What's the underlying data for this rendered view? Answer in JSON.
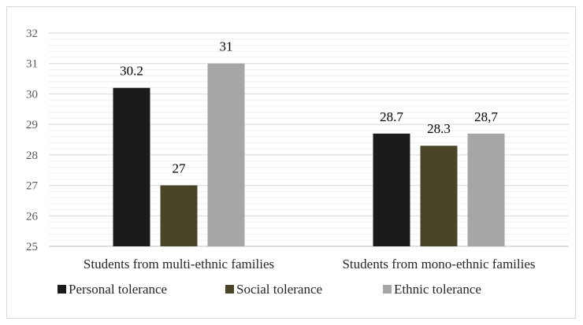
{
  "chart_data": {
    "type": "bar",
    "title": "",
    "xlabel": "",
    "ylabel": "",
    "ylim": [
      25,
      32
    ],
    "yticks": [
      25,
      26,
      27,
      28,
      29,
      30,
      31,
      32
    ],
    "minor_gridlines": true,
    "legend_position": "bottom-left",
    "categories": [
      "Students from multi-ethnic families",
      "Students from mono-ethnic families"
    ],
    "series": [
      {
        "name": "Personal tolerance",
        "color": "#1a1a1a",
        "values": [
          30.2,
          28.7
        ],
        "labels": [
          "30.2",
          "28.7"
        ]
      },
      {
        "name": "Social tolerance",
        "color": "#4a4429",
        "values": [
          27,
          28.3
        ],
        "labels": [
          "27",
          "28.3"
        ]
      },
      {
        "name": "Ethnic tolerance",
        "color": "#a6a6a6",
        "values": [
          31,
          28.7
        ],
        "labels": [
          "31",
          "28,7"
        ]
      }
    ]
  }
}
